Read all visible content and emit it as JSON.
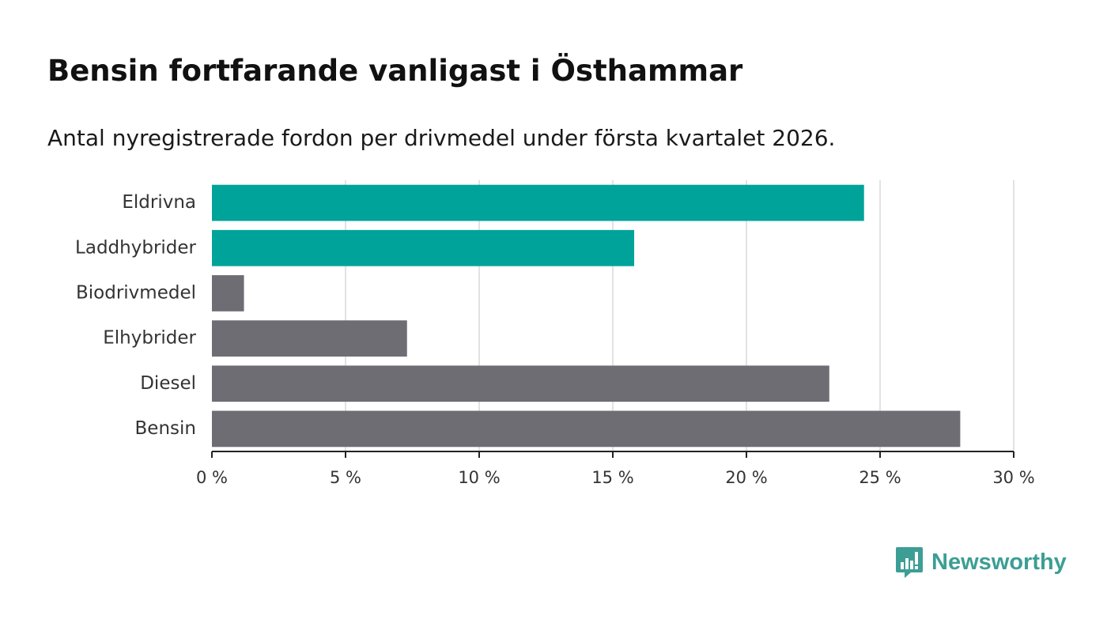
{
  "chart_data": {
    "type": "bar",
    "orientation": "horizontal",
    "title": "Bensin fortfarande vanligast i Östhammar",
    "subtitle": "Antal nyregistrerade fordon per drivmedel under första kvartalet 2026.",
    "categories": [
      "Eldrivna",
      "Laddhybrider",
      "Biodrivmedel",
      "Elhybrider",
      "Diesel",
      "Bensin"
    ],
    "values": [
      24.4,
      15.8,
      1.2,
      7.3,
      23.1,
      28.0
    ],
    "highlight": [
      true,
      true,
      false,
      false,
      false,
      false
    ],
    "xlim": [
      0,
      30
    ],
    "xticks": [
      0,
      5,
      10,
      15,
      20,
      25,
      30
    ],
    "xtick_labels": [
      "0 %",
      "5 %",
      "10 %",
      "15 %",
      "20 %",
      "25 %",
      "30 %"
    ],
    "xlabel": "",
    "ylabel": "",
    "grid": true,
    "colors": {
      "highlight": "#00a39a",
      "default": "#6e6d74",
      "grid": "#d9d9d9",
      "axis": "#222222"
    }
  },
  "brand": {
    "name": "Newsworthy",
    "color": "#3c9e94"
  }
}
